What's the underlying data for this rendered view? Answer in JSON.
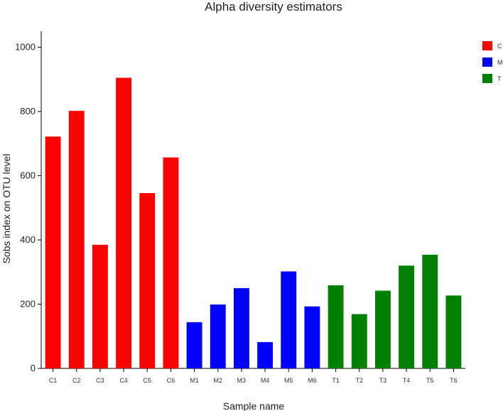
{
  "chart_data": {
    "type": "bar",
    "title": "Alpha diversity estimators",
    "xlabel": "Sample name",
    "ylabel": "Sobs index on OTU level",
    "ylim": [
      0,
      1050
    ],
    "yticks": [
      0,
      200,
      400,
      600,
      800,
      1000
    ],
    "grid": false,
    "legend_position": "top-right",
    "groups": [
      {
        "name": "C",
        "color": "#ff0000"
      },
      {
        "name": "M",
        "color": "#0000ff"
      },
      {
        "name": "T",
        "color": "#008000"
      }
    ],
    "categories": [
      "C1",
      "C2",
      "C3",
      "C4",
      "C5",
      "C6",
      "M1",
      "M2",
      "M3",
      "M4",
      "M5",
      "M6",
      "T1",
      "T2",
      "T3",
      "T4",
      "T5",
      "T6"
    ],
    "values": [
      722,
      802,
      385,
      905,
      546,
      657,
      144,
      199,
      250,
      82,
      302,
      193,
      259,
      169,
      242,
      320,
      354,
      227
    ],
    "bar_groups": [
      "C",
      "C",
      "C",
      "C",
      "C",
      "C",
      "M",
      "M",
      "M",
      "M",
      "M",
      "M",
      "T",
      "T",
      "T",
      "T",
      "T",
      "T"
    ]
  }
}
